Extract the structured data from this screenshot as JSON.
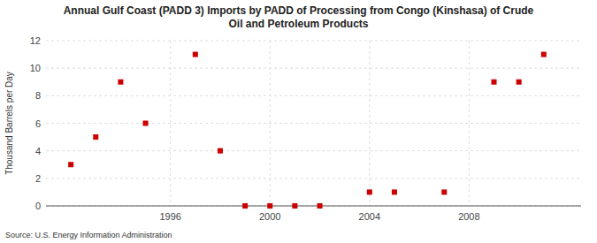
{
  "chart_data": {
    "type": "scatter",
    "title": "Annual Gulf Coast (PADD 3) Imports by PADD of Processing from Congo (Kinshasa) of Crude\nOil and Petroleum Products",
    "y_label": "Thousand Barrels per Day",
    "source": "Source: U.S. Energy Information Administration",
    "x": [
      1992,
      1993,
      1994,
      1995,
      1997,
      1998,
      1999,
      2000,
      2001,
      2002,
      2004,
      2005,
      2007,
      2009,
      2010,
      2011
    ],
    "values": [
      3,
      5,
      9,
      6,
      11,
      4,
      0,
      0,
      0,
      0,
      1,
      1,
      1,
      9,
      9,
      11
    ],
    "color": "#cc0000",
    "marker": "square",
    "xlim": [
      1991.0,
      2012.5
    ],
    "ylim": [
      0,
      12
    ],
    "xticks": [
      1996,
      2000,
      2004,
      2008
    ],
    "yticks": [
      0,
      2,
      4,
      6,
      8,
      10,
      12
    ],
    "grid": true
  }
}
